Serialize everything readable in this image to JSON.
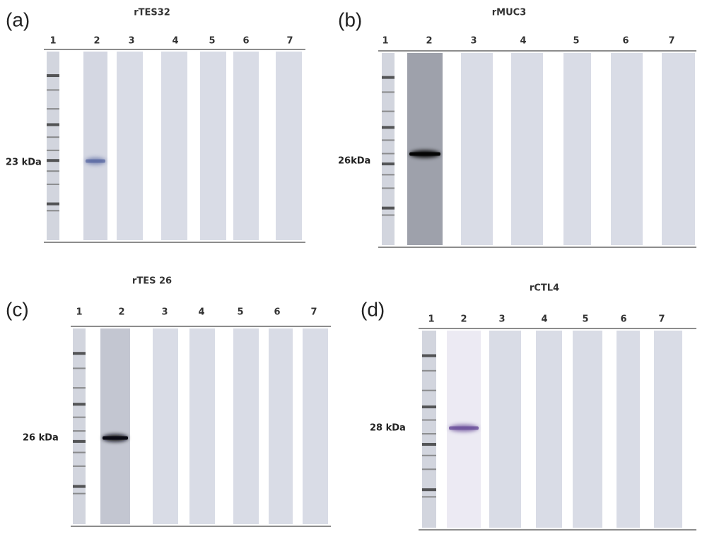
{
  "panels": [
    {
      "letter": "(a)",
      "title": "rTES32",
      "lanes": [
        "1",
        "2",
        "3",
        "4",
        "5",
        "6",
        "7"
      ],
      "marker": "23 kDa"
    },
    {
      "letter": "(b)",
      "title": "rMUC3",
      "lanes": [
        "1",
        "2",
        "3",
        "4",
        "5",
        "6",
        "7"
      ],
      "marker": "26kDa"
    },
    {
      "letter": "(c)",
      "title": "rTES 26",
      "lanes": [
        "1",
        "2",
        "3",
        "4",
        "5",
        "6",
        "7"
      ],
      "marker": "26 kDa"
    },
    {
      "letter": "(d)",
      "title": "rCTL4",
      "lanes": [
        "1",
        "2",
        "3",
        "4",
        "5",
        "6",
        "7"
      ],
      "marker": "28 kDa"
    }
  ]
}
